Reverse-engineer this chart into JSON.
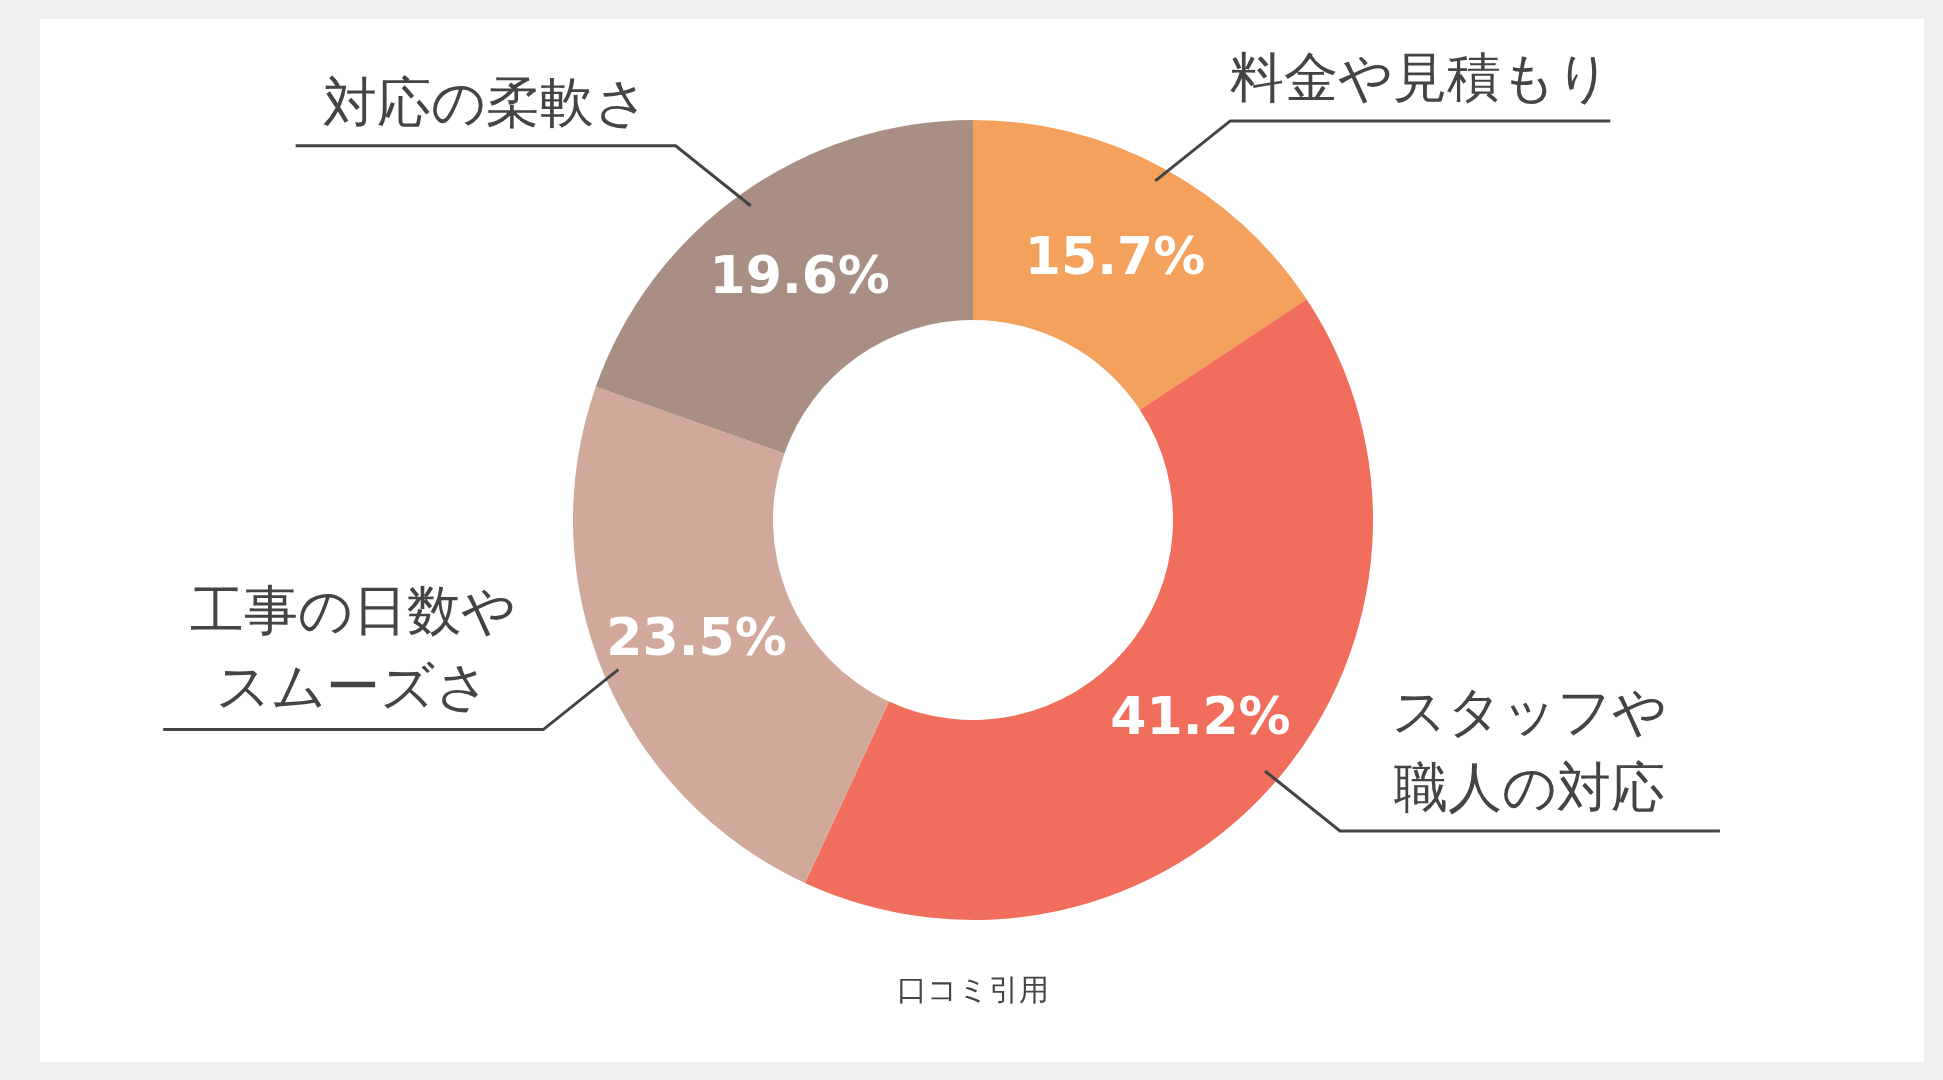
{
  "chart_data": {
    "type": "donut",
    "categories": [
      "料金や見積もり",
      "スタッフや職人の対応",
      "工事の日数やスムーズさ",
      "対応の柔軟さ"
    ],
    "values": [
      15.7,
      41.2,
      23.5,
      19.6
    ],
    "colors": [
      "#f4a15d",
      "#f26e5c",
      "#d1a99b",
      "#a98f83"
    ],
    "value_labels": [
      "15.7%",
      "41.2%",
      "23.5%",
      "19.6%"
    ],
    "annotations": [
      "口コミ引用"
    ]
  }
}
